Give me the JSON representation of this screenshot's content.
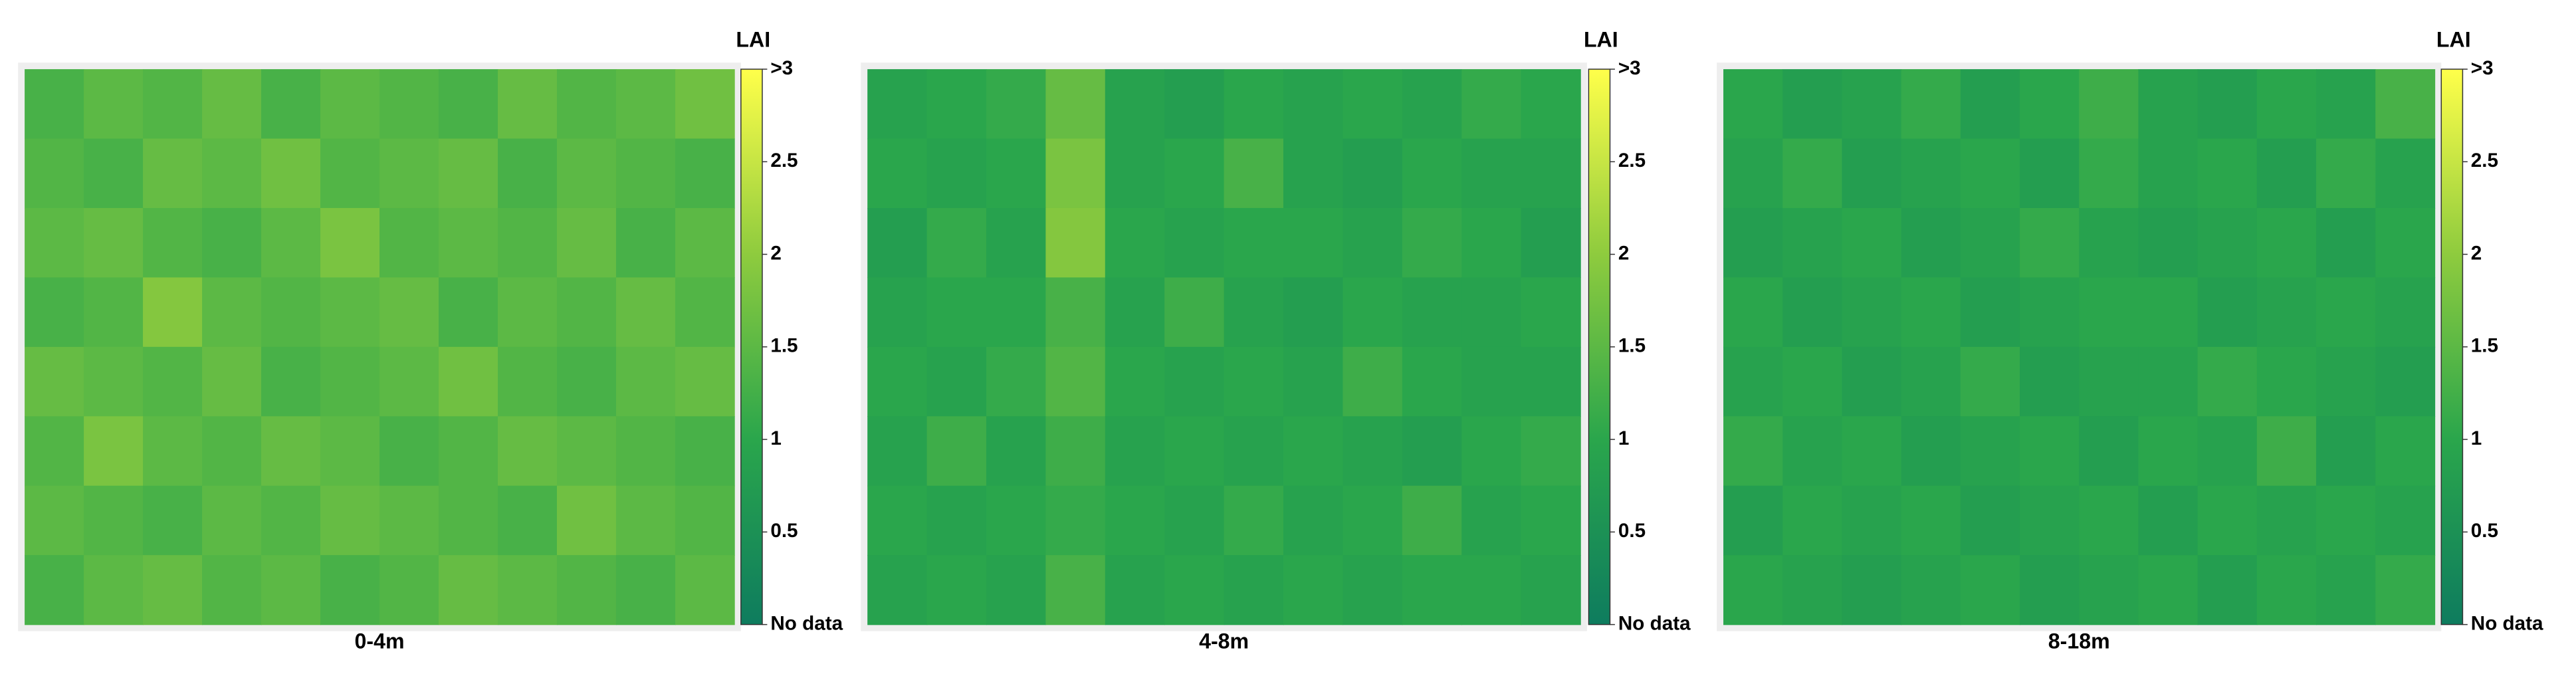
{
  "chart_data": [
    {
      "type": "heatmap",
      "title": "0-4m",
      "colorbar_label": "LAI",
      "clim": [
        0,
        3
      ],
      "cticks": [
        {
          "value": 0,
          "label": "No data"
        },
        0.5,
        1,
        1.5,
        2,
        2.5,
        {
          "value": 3,
          "label": ">3"
        }
      ],
      "colormap": [
        [
          0,
          "#0e7c5e"
        ],
        [
          1,
          "#2aa64c"
        ],
        [
          2,
          "#8ecb3e"
        ],
        [
          3,
          "#ffff4a"
        ]
      ],
      "values": [
        [
          1.3,
          1.5,
          1.4,
          1.6,
          1.3,
          1.5,
          1.4,
          1.3,
          1.6,
          1.4,
          1.5,
          1.7
        ],
        [
          1.4,
          1.3,
          1.6,
          1.5,
          1.7,
          1.4,
          1.5,
          1.6,
          1.3,
          1.5,
          1.4,
          1.3
        ],
        [
          1.5,
          1.6,
          1.4,
          1.3,
          1.5,
          1.8,
          1.4,
          1.5,
          1.4,
          1.6,
          1.3,
          1.5
        ],
        [
          1.3,
          1.4,
          1.9,
          1.5,
          1.4,
          1.5,
          1.6,
          1.3,
          1.5,
          1.4,
          1.6,
          1.4
        ],
        [
          1.6,
          1.5,
          1.4,
          1.6,
          1.3,
          1.4,
          1.5,
          1.7,
          1.4,
          1.3,
          1.5,
          1.6
        ],
        [
          1.4,
          1.8,
          1.5,
          1.4,
          1.6,
          1.5,
          1.3,
          1.4,
          1.6,
          1.5,
          1.4,
          1.3
        ],
        [
          1.5,
          1.4,
          1.3,
          1.5,
          1.4,
          1.6,
          1.5,
          1.4,
          1.3,
          1.7,
          1.5,
          1.4
        ],
        [
          1.3,
          1.5,
          1.6,
          1.4,
          1.5,
          1.3,
          1.4,
          1.6,
          1.5,
          1.4,
          1.3,
          1.5
        ]
      ]
    },
    {
      "type": "heatmap",
      "title": "4-8m",
      "colorbar_label": "LAI",
      "clim": [
        0,
        3
      ],
      "cticks": [
        {
          "value": 0,
          "label": "No data"
        },
        0.5,
        1,
        1.5,
        2,
        2.5,
        {
          "value": 3,
          "label": ">3"
        }
      ],
      "colormap": [
        [
          0,
          "#0e7c5e"
        ],
        [
          1,
          "#2aa64c"
        ],
        [
          2,
          "#8ecb3e"
        ],
        [
          3,
          "#ffff4a"
        ]
      ],
      "values": [
        [
          0.9,
          1.0,
          1.1,
          1.6,
          0.9,
          0.8,
          1.0,
          0.9,
          1.0,
          0.9,
          1.1,
          1.0
        ],
        [
          1.0,
          0.9,
          1.0,
          1.8,
          0.9,
          1.0,
          1.3,
          0.9,
          0.8,
          1.0,
          0.9,
          0.9
        ],
        [
          0.8,
          1.1,
          0.9,
          1.9,
          1.0,
          0.9,
          1.0,
          1.0,
          0.9,
          1.1,
          1.0,
          0.8
        ],
        [
          0.9,
          1.0,
          1.0,
          1.3,
          0.9,
          1.2,
          0.9,
          0.8,
          1.0,
          0.9,
          0.9,
          1.0
        ],
        [
          1.0,
          0.9,
          1.1,
          1.4,
          1.0,
          0.9,
          1.0,
          0.9,
          1.2,
          1.0,
          0.9,
          0.9
        ],
        [
          0.9,
          1.2,
          0.9,
          1.2,
          0.9,
          1.0,
          0.9,
          1.0,
          0.9,
          0.8,
          1.0,
          1.1
        ],
        [
          1.0,
          0.9,
          1.0,
          1.1,
          1.0,
          0.9,
          1.1,
          0.9,
          1.0,
          1.2,
          0.9,
          1.0
        ],
        [
          0.9,
          1.0,
          0.9,
          1.3,
          0.9,
          1.0,
          0.9,
          1.0,
          0.9,
          1.0,
          1.0,
          0.9
        ]
      ]
    },
    {
      "type": "heatmap",
      "title": "8-18m",
      "colorbar_label": "LAI",
      "clim": [
        0,
        3
      ],
      "cticks": [
        {
          "value": 0,
          "label": "No data"
        },
        0.5,
        1,
        1.5,
        2,
        2.5,
        {
          "value": 3,
          "label": ">3"
        }
      ],
      "colormap": [
        [
          0,
          "#0e7c5e"
        ],
        [
          1,
          "#2aa64c"
        ],
        [
          2,
          "#8ecb3e"
        ],
        [
          3,
          "#ffff4a"
        ]
      ],
      "values": [
        [
          1.0,
          0.8,
          0.9,
          1.1,
          0.8,
          1.0,
          1.2,
          0.9,
          0.8,
          1.0,
          0.9,
          1.3
        ],
        [
          0.9,
          1.1,
          0.8,
          0.9,
          1.0,
          0.8,
          1.1,
          0.9,
          1.0,
          0.8,
          1.1,
          0.9
        ],
        [
          0.8,
          0.9,
          1.0,
          0.8,
          0.9,
          1.1,
          0.9,
          0.8,
          0.9,
          1.0,
          0.8,
          1.0
        ],
        [
          1.0,
          0.8,
          0.9,
          1.0,
          0.8,
          0.9,
          1.0,
          1.0,
          0.8,
          0.9,
          1.0,
          0.9
        ],
        [
          0.9,
          1.0,
          0.8,
          0.9,
          1.1,
          0.8,
          0.9,
          0.9,
          1.1,
          1.0,
          0.9,
          0.8
        ],
        [
          1.1,
          0.9,
          1.0,
          0.8,
          0.9,
          1.0,
          0.8,
          1.0,
          0.9,
          1.2,
          0.8,
          1.0
        ],
        [
          0.8,
          1.0,
          0.9,
          1.0,
          0.8,
          0.9,
          1.0,
          0.8,
          1.0,
          0.9,
          1.0,
          0.9
        ],
        [
          1.0,
          0.9,
          0.8,
          0.9,
          1.0,
          0.8,
          0.9,
          1.0,
          0.8,
          1.0,
          0.9,
          1.1
        ]
      ]
    }
  ]
}
